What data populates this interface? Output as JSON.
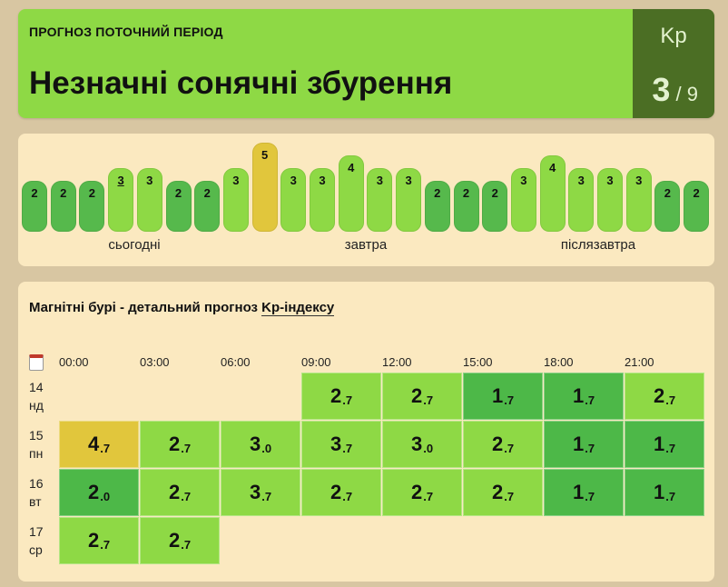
{
  "header": {
    "label": "ПРОГНОЗ ПОТОЧНИЙ ПЕРІОД",
    "title": "Незначні сонячні збурення",
    "kp_label": "Kp",
    "kp_value": "3",
    "kp_max": "9",
    "kp_separator": "/"
  },
  "colors": {
    "kp1": "#4db848",
    "kp2": "#56b94c",
    "kp3": "#8ed945",
    "kp4": "#8ed945",
    "kp5": "#e1c63c",
    "kp_panel": "#4b6e24"
  },
  "forecast_bars": [
    {
      "value": "2",
      "current": false
    },
    {
      "value": "2",
      "current": false
    },
    {
      "value": "2",
      "current": false
    },
    {
      "value": "3",
      "current": true
    },
    {
      "value": "3",
      "current": false
    },
    {
      "value": "2",
      "current": false
    },
    {
      "value": "2",
      "current": false
    },
    {
      "value": "3",
      "current": false
    },
    {
      "value": "5",
      "current": false
    },
    {
      "value": "3",
      "current": false
    },
    {
      "value": "3",
      "current": false
    },
    {
      "value": "4",
      "current": false
    },
    {
      "value": "3",
      "current": false
    },
    {
      "value": "3",
      "current": false
    },
    {
      "value": "2",
      "current": false
    },
    {
      "value": "2",
      "current": false
    },
    {
      "value": "2",
      "current": false
    },
    {
      "value": "3",
      "current": false
    },
    {
      "value": "4",
      "current": false
    },
    {
      "value": "3",
      "current": false
    },
    {
      "value": "3",
      "current": false
    },
    {
      "value": "3",
      "current": false
    },
    {
      "value": "2",
      "current": false
    },
    {
      "value": "2",
      "current": false
    }
  ],
  "day_labels": [
    "сьогодні",
    "завтра",
    "післязавтра"
  ],
  "detail": {
    "title_prefix": "Магнітні бурі - детальний прогноз ",
    "title_link": "Kp-індексу",
    "times": [
      "00:00",
      "03:00",
      "06:00",
      "09:00",
      "12:00",
      "15:00",
      "18:00",
      "21:00"
    ],
    "rows": [
      {
        "day": "14",
        "weekday": "нд",
        "start": 3,
        "cells": [
          {
            "v": "2",
            "d": ".7",
            "kp": 2
          },
          {
            "v": "2",
            "d": ".7",
            "kp": 2
          },
          {
            "v": "1",
            "d": ".7",
            "kp": 1
          },
          {
            "v": "1",
            "d": ".7",
            "kp": 1
          },
          {
            "v": "2",
            "d": ".7",
            "kp": 2
          }
        ]
      },
      {
        "day": "15",
        "weekday": "пн",
        "start": 0,
        "cells": [
          {
            "v": "4",
            "d": ".7",
            "kp": 5
          },
          {
            "v": "2",
            "d": ".7",
            "kp": 2
          },
          {
            "v": "3",
            "d": ".0",
            "kp": 2
          },
          {
            "v": "3",
            "d": ".7",
            "kp": 2
          },
          {
            "v": "3",
            "d": ".0",
            "kp": 2
          },
          {
            "v": "2",
            "d": ".7",
            "kp": 2
          },
          {
            "v": "1",
            "d": ".7",
            "kp": 1
          },
          {
            "v": "1",
            "d": ".7",
            "kp": 1
          }
        ]
      },
      {
        "day": "16",
        "weekday": "вт",
        "start": 0,
        "cells": [
          {
            "v": "2",
            "d": ".0",
            "kp": 1
          },
          {
            "v": "2",
            "d": ".7",
            "kp": 2
          },
          {
            "v": "3",
            "d": ".7",
            "kp": 2
          },
          {
            "v": "2",
            "d": ".7",
            "kp": 2
          },
          {
            "v": "2",
            "d": ".7",
            "kp": 2
          },
          {
            "v": "2",
            "d": ".7",
            "kp": 2
          },
          {
            "v": "1",
            "d": ".7",
            "kp": 1
          },
          {
            "v": "1",
            "d": ".7",
            "kp": 1
          }
        ]
      },
      {
        "day": "17",
        "weekday": "ср",
        "start": 0,
        "cells": [
          {
            "v": "2",
            "d": ".7",
            "kp": 2
          },
          {
            "v": "2",
            "d": ".7",
            "kp": 2
          }
        ]
      }
    ]
  }
}
